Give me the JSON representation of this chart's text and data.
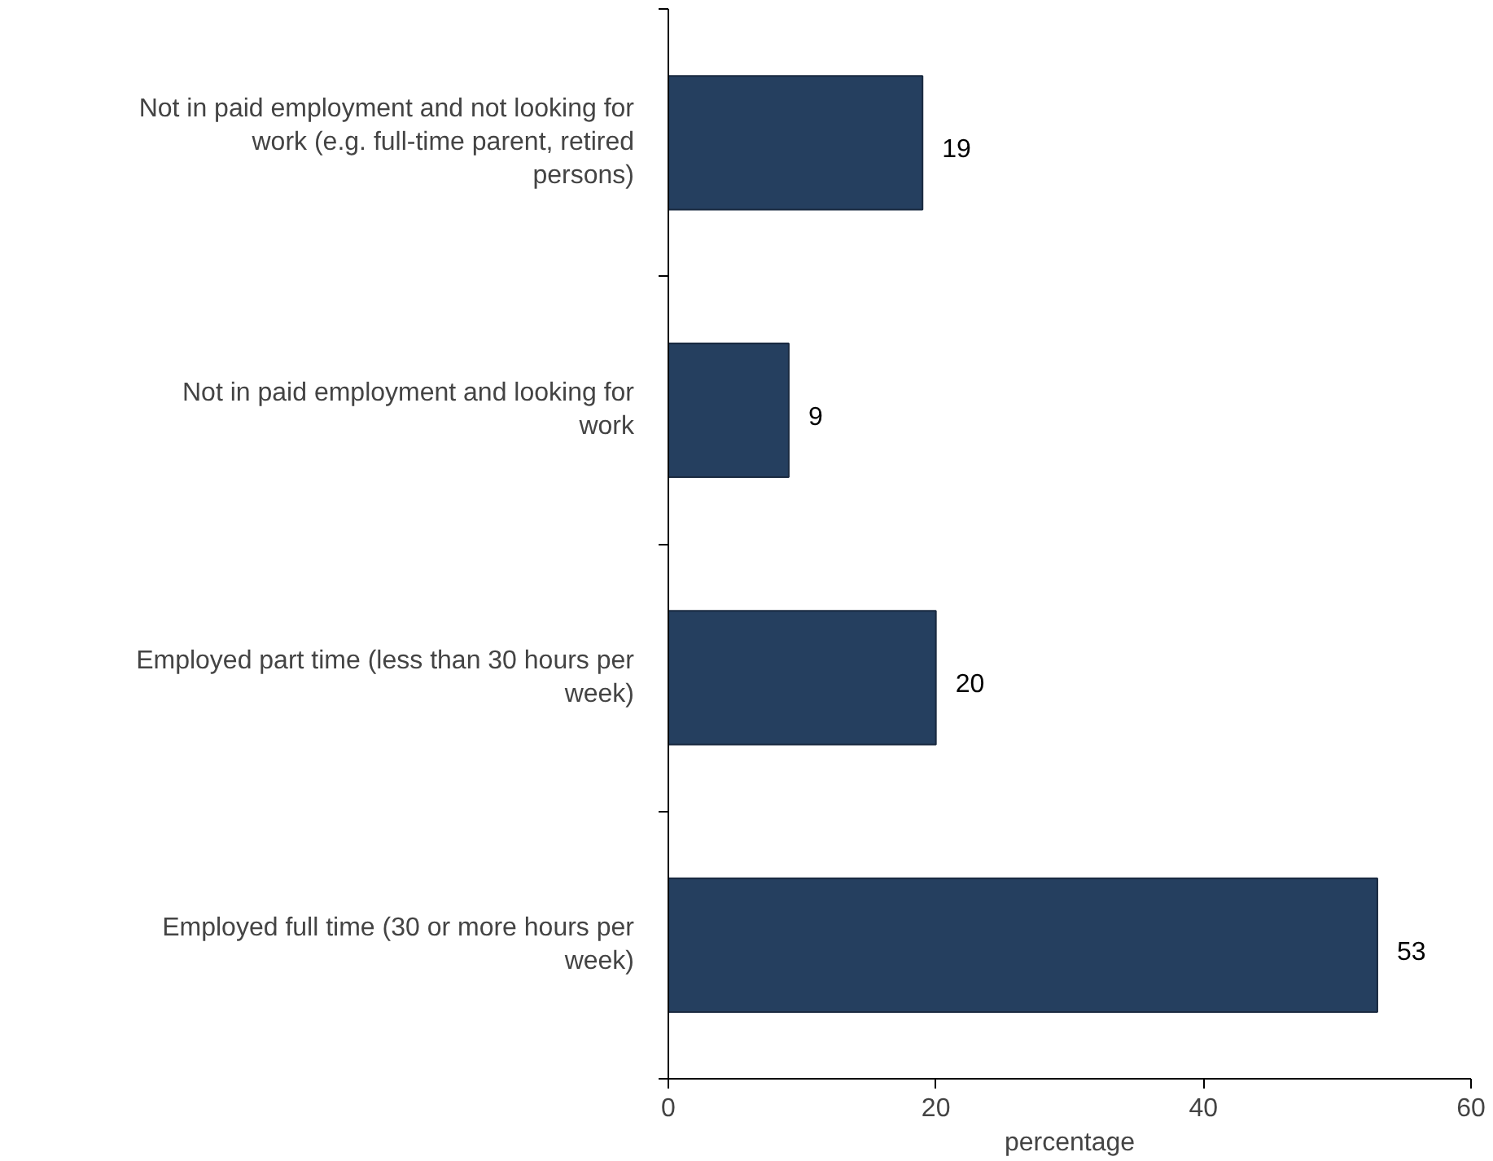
{
  "chart_data": {
    "type": "bar",
    "orientation": "horizontal",
    "xlabel": "percentage",
    "categories": [
      "Not in paid employment and not looking for work (e.g. full-time parent, retired persons)",
      "Not in paid employment and looking for work",
      "Employed part time (less than 30 hours per week)",
      "Employed full time (30 or more hours per week)"
    ],
    "values": [
      19,
      9,
      20,
      53
    ],
    "color": "#253f5f",
    "data_labels": true,
    "xlim": [
      0,
      60
    ],
    "xticks": [
      0,
      20,
      40,
      60
    ],
    "grid": false,
    "legend": false
  }
}
